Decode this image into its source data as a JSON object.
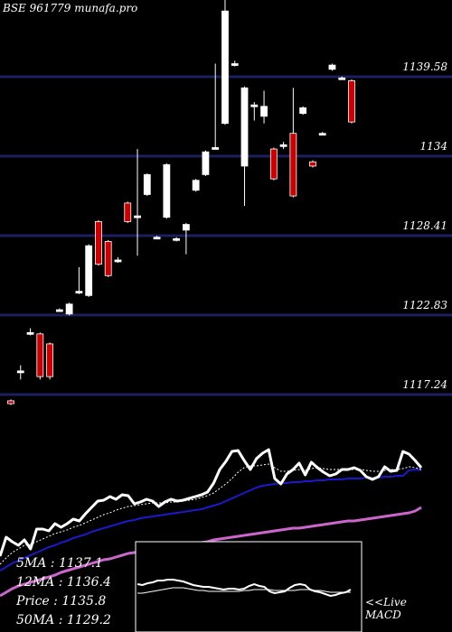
{
  "title": "BSE 961779 munafa.pro",
  "chart_data": {
    "type": "candlestick",
    "y_ticks": [
      1139.58,
      1134,
      1128.41,
      1122.83,
      1117.24
    ],
    "ylim": [
      1116.0,
      1145.0
    ],
    "candles": [
      {
        "o": 1116.8,
        "c": 1116.6,
        "h": 1116.9,
        "l": 1116.5
      },
      {
        "o": 1118.9,
        "c": 1118.9,
        "h": 1119.3,
        "l": 1118.3
      },
      {
        "o": 1121.6,
        "c": 1121.6,
        "h": 1121.9,
        "l": 1121.4
      },
      {
        "o": 1121.5,
        "c": 1118.5,
        "h": 1121.6,
        "l": 1118.3
      },
      {
        "o": 1120.8,
        "c": 1118.5,
        "h": 1120.9,
        "l": 1118.3
      },
      {
        "o": 1123.2,
        "c": 1123.2,
        "h": 1123.3,
        "l": 1123.1
      },
      {
        "o": 1122.9,
        "c": 1123.6,
        "h": 1123.7,
        "l": 1122.8
      },
      {
        "o": 1124.5,
        "c": 1124.5,
        "h": 1126.2,
        "l": 1124.3
      },
      {
        "o": 1124.2,
        "c": 1127.7,
        "h": 1127.8,
        "l": 1124.1
      },
      {
        "o": 1129.4,
        "c": 1126.4,
        "h": 1129.5,
        "l": 1126.3
      },
      {
        "o": 1128.0,
        "c": 1125.6,
        "h": 1128.1,
        "l": 1125.5
      },
      {
        "o": 1126.7,
        "c": 1126.7,
        "h": 1126.9,
        "l": 1126.5
      },
      {
        "o": 1130.7,
        "c": 1129.4,
        "h": 1130.8,
        "l": 1129.3
      },
      {
        "o": 1129.8,
        "c": 1129.8,
        "h": 1134.5,
        "l": 1127.0
      },
      {
        "o": 1131.3,
        "c": 1132.7,
        "h": 1132.8,
        "l": 1131.2
      },
      {
        "o": 1128.3,
        "c": 1128.3,
        "h": 1128.4,
        "l": 1128.2
      },
      {
        "o": 1129.7,
        "c": 1133.4,
        "h": 1133.5,
        "l": 1129.6
      },
      {
        "o": 1128.1,
        "c": 1128.2,
        "h": 1128.3,
        "l": 1128.0
      },
      {
        "o": 1128.8,
        "c": 1129.2,
        "h": 1129.3,
        "l": 1127.1
      },
      {
        "o": 1131.6,
        "c": 1132.3,
        "h": 1132.4,
        "l": 1131.5
      },
      {
        "o": 1132.7,
        "c": 1134.3,
        "h": 1134.4,
        "l": 1132.6
      },
      {
        "o": 1134.6,
        "c": 1134.6,
        "h": 1140.5,
        "l": 1134.5
      },
      {
        "o": 1136.3,
        "c": 1144.2,
        "h": 1145.0,
        "l": 1136.2
      },
      {
        "o": 1140.5,
        "c": 1140.5,
        "h": 1140.7,
        "l": 1140.3
      },
      {
        "o": 1133.3,
        "c": 1138.8,
        "h": 1138.9,
        "l": 1130.5
      },
      {
        "o": 1137.6,
        "c": 1137.6,
        "h": 1137.8,
        "l": 1136.5
      },
      {
        "o": 1136.8,
        "c": 1137.5,
        "h": 1138.6,
        "l": 1136.3
      },
      {
        "o": 1134.5,
        "c": 1132.4,
        "h": 1134.6,
        "l": 1132.3
      },
      {
        "o": 1134.8,
        "c": 1134.8,
        "h": 1135.0,
        "l": 1134.5
      },
      {
        "o": 1135.6,
        "c": 1131.2,
        "h": 1138.8,
        "l": 1131.1
      },
      {
        "o": 1137.0,
        "c": 1137.4,
        "h": 1137.5,
        "l": 1136.9
      },
      {
        "o": 1133.6,
        "c": 1133.3,
        "h": 1133.7,
        "l": 1133.2
      },
      {
        "o": 1135.6,
        "c": 1135.6,
        "h": 1135.7,
        "l": 1135.5
      },
      {
        "o": 1140.1,
        "c": 1140.4,
        "h": 1140.5,
        "l": 1140.0
      },
      {
        "o": 1139.5,
        "c": 1139.5,
        "h": 1139.6,
        "l": 1139.4
      },
      {
        "o": 1139.3,
        "c": 1136.4,
        "h": 1139.4,
        "l": 1136.3
      }
    ],
    "indicator": {
      "price": [
        616,
        595,
        600,
        604,
        598,
        608,
        586,
        586,
        588,
        580,
        584,
        580,
        575,
        577,
        569,
        562,
        555,
        554,
        550,
        553,
        548,
        549,
        558,
        556,
        553,
        555,
        561,
        556,
        553,
        555,
        554,
        552,
        550,
        548,
        545,
        535,
        520,
        511,
        500,
        499,
        510,
        520,
        508,
        502,
        498,
        530,
        536,
        525,
        520,
        513,
        526,
        512,
        518,
        523,
        527,
        525,
        520,
        520,
        518,
        521,
        528,
        531,
        528,
        517,
        522,
        521,
        500,
        503,
        510,
        518
      ],
      "ma_fast": [
        625,
        618,
        612,
        608,
        604,
        603,
        600,
        597,
        594,
        591,
        589,
        587,
        584,
        582,
        579,
        576,
        573,
        570,
        568,
        565,
        563,
        561,
        560,
        559,
        558,
        557,
        557,
        557,
        556,
        556,
        555,
        554,
        553,
        551,
        549,
        546,
        541,
        536,
        530,
        523,
        518,
        516,
        516,
        515,
        514,
        518,
        522,
        522,
        521,
        520,
        521,
        519,
        518,
        519,
        520,
        520,
        520,
        520,
        520,
        520,
        521,
        522,
        522,
        521,
        520,
        520,
        519,
        517,
        518,
        520
      ],
      "ma_slow": [
        632,
        628,
        624,
        621,
        618,
        615,
        612,
        609,
        606,
        604,
        601,
        599,
        596,
        594,
        592,
        589,
        587,
        585,
        583,
        581,
        579,
        577,
        576,
        574,
        573,
        572,
        571,
        570,
        569,
        568,
        567,
        566,
        565,
        564,
        562,
        560,
        558,
        555,
        552,
        549,
        546,
        543,
        540,
        538,
        537,
        536,
        535,
        535,
        534,
        534,
        533,
        533,
        532,
        532,
        531,
        531,
        531,
        530,
        530,
        530,
        529,
        529,
        529,
        528,
        528,
        527,
        527,
        521,
        520,
        521
      ],
      "ma_long": [
        660,
        656,
        652,
        649,
        647,
        645,
        643,
        641,
        639,
        637,
        634,
        632,
        630,
        628,
        626,
        624,
        622,
        620,
        619,
        617,
        615,
        613,
        612,
        611,
        610,
        609,
        608,
        607,
        606,
        605,
        604,
        603,
        602,
        601,
        600,
        598,
        597,
        596,
        595,
        594,
        593,
        592,
        591,
        590,
        589,
        588,
        587,
        586,
        585,
        585,
        584,
        583,
        582,
        581,
        580,
        579,
        578,
        577,
        577,
        576,
        575,
        574,
        573,
        572,
        571,
        570,
        569,
        568,
        566,
        562
      ],
      "macd": [
        647,
        648,
        646,
        645,
        643,
        643,
        642,
        642,
        643,
        644,
        646,
        648,
        649,
        650,
        650,
        651,
        652,
        653,
        652,
        652,
        653,
        652,
        649,
        647,
        649,
        650,
        655,
        657,
        656,
        655,
        651,
        648,
        647,
        648,
        653,
        655,
        656,
        658,
        660,
        659,
        657,
        656,
        653
      ],
      "macd_signal": [
        657,
        657,
        656,
        655,
        654,
        653,
        652,
        651,
        651,
        651,
        652,
        653,
        654,
        654,
        655,
        655,
        655,
        655,
        655,
        655,
        655,
        654,
        654,
        653,
        653,
        653,
        653,
        654,
        654,
        654,
        654,
        654,
        653,
        653,
        653,
        654,
        654,
        655,
        656,
        656,
        656,
        656,
        656
      ]
    },
    "legend": {
      "ma5": "5MA : 1137.1",
      "ma12": "12MA : 1136.4",
      "price": "Price : 1135.8",
      "ma50": "50MA : 1129.2"
    },
    "macd_label": [
      "<<Live",
      "MACD"
    ]
  },
  "colors": {
    "background": "#000000",
    "grid": "#1c1f5e",
    "up": "#ffffff",
    "down": "#cc0000",
    "ma_fast": "#1a1acc",
    "ma_long": "#cc66cc",
    "macd_box": "#000000",
    "macd_border": "#ffffff"
  }
}
